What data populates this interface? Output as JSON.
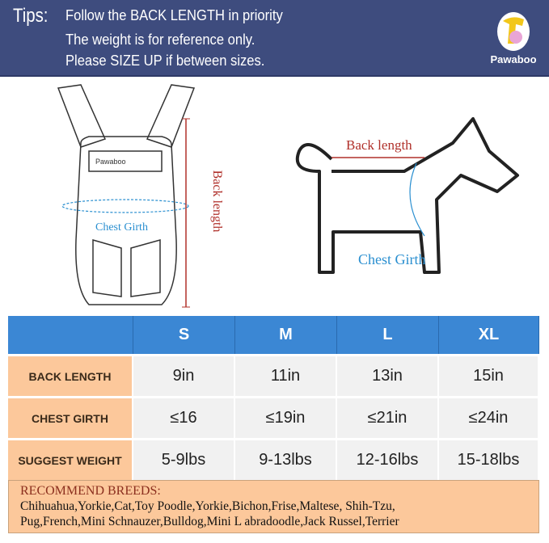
{
  "header": {
    "tips_label": "Tips:",
    "lines": [
      "Follow the BACK LENGTH in priority",
      "The weight is for reference only.",
      "Please SIZE UP if between sizes."
    ],
    "logo_text": "Pawaboo"
  },
  "diagrams": {
    "carrier": {
      "brand_tag": "Pawaboo",
      "chest_girth": "Chest Girth",
      "back_length": "Back length"
    },
    "dog": {
      "back_length": "Back length",
      "chest_girth": "Chest Girth"
    }
  },
  "colors": {
    "header_bg": "#3e4c7e",
    "table_header": "#3b87d4",
    "label_bg": "#fcc89b",
    "cell_bg": "#f1f1f1",
    "accent_red": "#b0302a",
    "accent_blue": "#2a8fd0"
  },
  "table": {
    "columns": [
      "",
      "S",
      "M",
      "L",
      "XL"
    ],
    "rows": [
      {
        "label": "BACK LENGTH",
        "values": [
          "9in",
          "11in",
          "13in",
          "15in"
        ]
      },
      {
        "label": "CHEST GIRTH",
        "values": [
          "≤16",
          "≤19in",
          "≤21in",
          "≤24in"
        ]
      },
      {
        "label": "SUGGEST WEIGHT",
        "values": [
          "5-9lbs",
          "9-13lbs",
          "12-16lbs",
          "15-18lbs"
        ]
      }
    ]
  },
  "breeds": {
    "title": "RECOMMEND BREEDS:",
    "lines": [
      "Chihuahua,Yorkie,Cat,Toy Poodle,Yorkie,Bichon,Frise,Maltese, Shih-Tzu,",
      "Pug,French,Mini Schnauzer,Bulldog,Mini L abradoodle,Jack Russel,Terrier"
    ]
  }
}
